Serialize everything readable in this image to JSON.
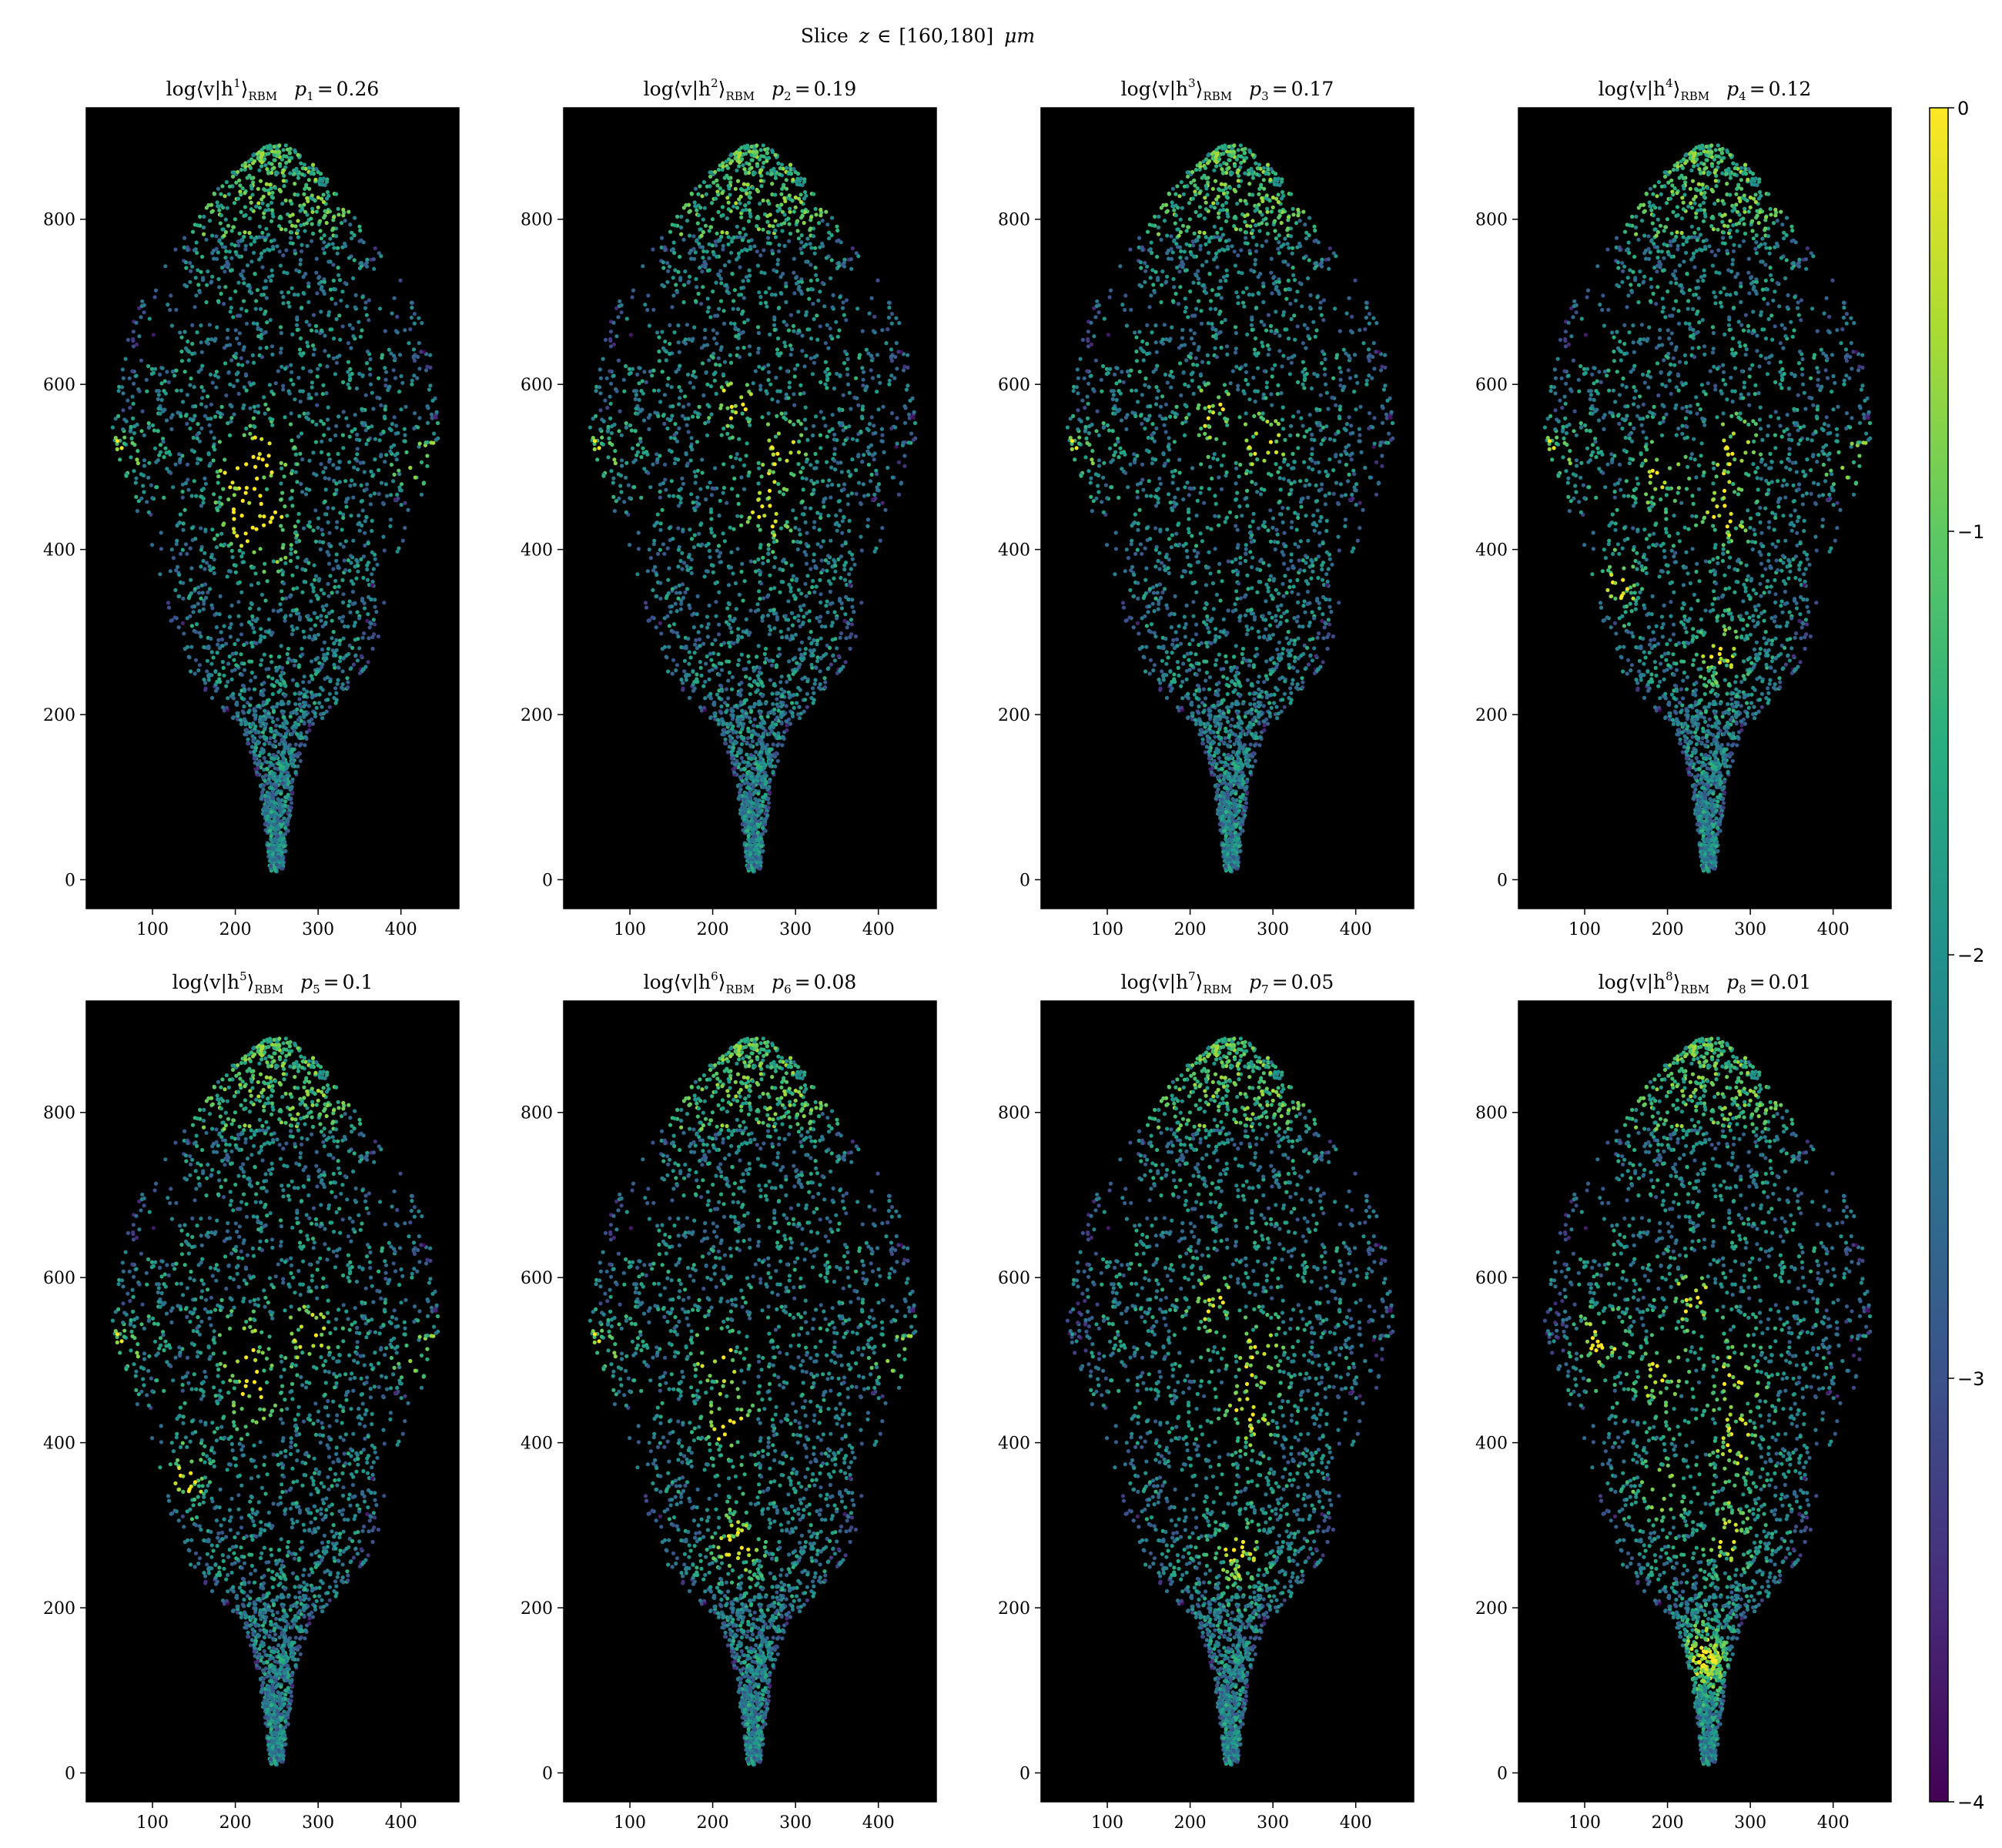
{
  "figure": {
    "suptitle": {
      "prefix": "Slice",
      "var": "z",
      "rel": "∈",
      "range": "[160,180]",
      "unit": "μm"
    }
  },
  "chart_data": {
    "type": "scatter",
    "colormap": "viridis",
    "background_color": "#000000",
    "xlim": [
      20,
      470
    ],
    "ylim": [
      -35,
      935
    ],
    "x_ticks": [
      100,
      200,
      300,
      400
    ],
    "y_ticks": [
      0,
      200,
      400,
      600,
      800
    ],
    "colorbar": {
      "min": -4,
      "max": 0,
      "ticks": [
        0,
        -1,
        -2,
        -3,
        -4
      ],
      "tick_labels": [
        "0",
        "−1",
        "−2",
        "−3",
        "−4"
      ]
    },
    "panels": [
      {
        "index": "1",
        "p_label": "p",
        "p_sub": "1",
        "p_value": "0.26",
        "title_main": "log⟨v|h",
        "title_sup": "1",
        "title_close": "⟩",
        "title_sub": "RBM",
        "hotspots": [
          [
            205,
            500
          ],
          [
            245,
            415
          ],
          [
            240,
            520
          ],
          [
            210,
            440
          ],
          [
            425,
            505
          ],
          [
            60,
            520
          ]
        ]
      },
      {
        "index": "2",
        "p_label": "p",
        "p_sub": "2",
        "p_value": "0.19",
        "title_main": "log⟨v|h",
        "title_sup": "2",
        "title_close": "⟩",
        "title_sub": "RBM",
        "hotspots": [
          [
            225,
            575
          ],
          [
            285,
            515
          ],
          [
            265,
            440
          ],
          [
            60,
            520
          ]
        ]
      },
      {
        "index": "3",
        "p_label": "p",
        "p_sub": "3",
        "p_value": "0.17",
        "title_main": "log⟨v|h",
        "title_sup": "3",
        "title_close": "⟩",
        "title_sub": "RBM",
        "hotspots": [
          [
            225,
            560
          ],
          [
            290,
            525
          ],
          [
            60,
            520
          ]
        ]
      },
      {
        "index": "4",
        "p_label": "p",
        "p_sub": "4",
        "p_value": "0.12",
        "title_main": "log⟨v|h",
        "title_sup": "4",
        "title_close": "⟩",
        "title_sub": "RBM",
        "hotspots": [
          [
            280,
            520
          ],
          [
            270,
            440
          ],
          [
            265,
            280
          ],
          [
            190,
            490
          ],
          [
            140,
            360
          ],
          [
            60,
            520
          ],
          [
            425,
            505
          ]
        ]
      },
      {
        "index": "5",
        "p_label": "p",
        "p_sub": "5",
        "p_value": "0.1",
        "title_main": "log⟨v|h",
        "title_sup": "5",
        "title_close": "⟩",
        "title_sub": "RBM",
        "hotspots": [
          [
            425,
            505
          ],
          [
            60,
            520
          ],
          [
            140,
            360
          ],
          [
            210,
            520
          ],
          [
            290,
            530
          ],
          [
            220,
            460
          ]
        ]
      },
      {
        "index": "6",
        "p_label": "p",
        "p_sub": "6",
        "p_value": "0.08",
        "title_main": "log⟨v|h",
        "title_sup": "6",
        "title_close": "⟩",
        "title_sub": "RBM",
        "hotspots": [
          [
            205,
            505
          ],
          [
            220,
            420
          ],
          [
            230,
            280
          ],
          [
            60,
            520
          ],
          [
            425,
            505
          ]
        ]
      },
      {
        "index": "7",
        "p_label": "p",
        "p_sub": "7",
        "p_value": "0.05",
        "title_main": "log⟨v|h",
        "title_sup": "7",
        "title_close": "⟩",
        "title_sub": "RBM",
        "hotspots": [
          [
            225,
            565
          ],
          [
            285,
            505
          ],
          [
            270,
            430
          ],
          [
            260,
            270
          ]
        ]
      },
      {
        "index": "8",
        "p_label": "p",
        "p_sub": "8",
        "p_value": "0.01",
        "title_main": "log⟨v|h",
        "title_sup": "8",
        "title_close": "⟩",
        "title_sub": "RBM",
        "hotspots": [
          [
            285,
            480
          ],
          [
            280,
            400
          ],
          [
            275,
            290
          ],
          [
            190,
            480
          ],
          [
            230,
            570
          ],
          [
            190,
            340
          ],
          [
            245,
            140
          ],
          [
            120,
            520
          ]
        ]
      }
    ]
  }
}
